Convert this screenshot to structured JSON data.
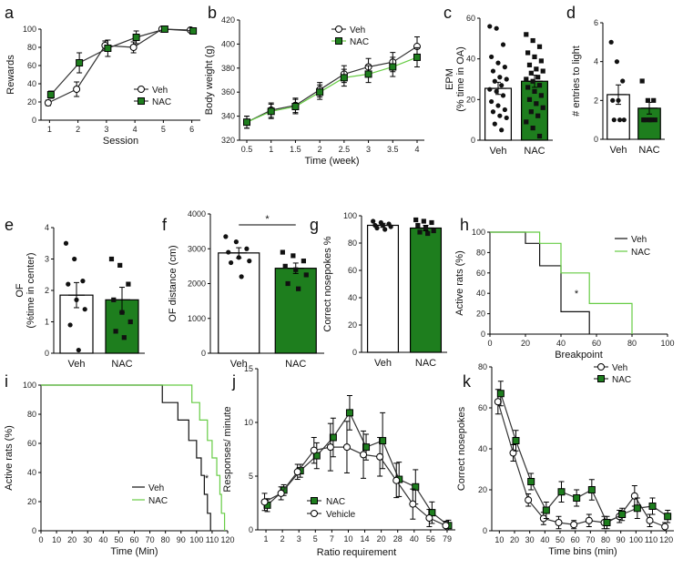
{
  "colors": {
    "veh": "#ffffff",
    "nac": "#1e7e1e",
    "nac_light": "#4caf50",
    "stroke": "#000000",
    "nac_line": "#66cc44"
  },
  "chart_data": [
    {
      "panel": "a",
      "type": "line",
      "x": [
        1,
        2,
        3,
        4,
        5,
        6
      ],
      "xlim": [
        0.7,
        6.3
      ],
      "ylim": [
        0,
        100
      ],
      "xticks": [
        "1",
        "2",
        "3",
        "4",
        "5",
        "6"
      ],
      "yticks": [
        "0",
        "20",
        "40",
        "60",
        "80",
        "100"
      ],
      "xlabel": "Session",
      "ylabel": "Rewards",
      "legend": [
        "Veh",
        "NAC"
      ],
      "series": [
        {
          "name": "Veh",
          "values": [
            19,
            34,
            82,
            80,
            100,
            99
          ],
          "err": [
            3,
            8,
            5,
            6,
            1,
            1
          ]
        },
        {
          "name": "NAC",
          "values": [
            28,
            63,
            79,
            91,
            100,
            98
          ],
          "err": [
            4,
            11,
            9,
            7,
            1,
            1
          ]
        }
      ]
    },
    {
      "panel": "b",
      "type": "line",
      "x": [
        0.5,
        1,
        1.5,
        2,
        2.5,
        3,
        3.5,
        4
      ],
      "xlim": [
        0.35,
        4.15
      ],
      "ylim": [
        320,
        420
      ],
      "xticks": [
        "0.5",
        "1",
        "1.5",
        "2",
        "2.5",
        "3",
        "3.5",
        "4"
      ],
      "yticks": [
        "320",
        "340",
        "360",
        "380",
        "400",
        "420"
      ],
      "xlabel": "Time (week)",
      "ylabel": "Body weight (g)",
      "legend": [
        "Veh",
        "NAC"
      ],
      "series": [
        {
          "name": "Veh",
          "values": [
            335,
            345,
            349,
            362,
            375,
            381,
            385,
            398
          ],
          "err": [
            5,
            6,
            6,
            6,
            7,
            7,
            8,
            8
          ]
        },
        {
          "name": "NAC",
          "values": [
            335,
            344,
            348,
            360,
            372,
            375,
            381,
            389
          ],
          "err": [
            5,
            6,
            6,
            6,
            7,
            7,
            8,
            8
          ]
        }
      ]
    },
    {
      "panel": "c",
      "type": "bar",
      "categories": [
        "Veh",
        "NAC"
      ],
      "values": [
        25.5,
        29
      ],
      "err": [
        3,
        3
      ],
      "ylim": [
        0,
        60
      ],
      "yticks": [
        "0",
        "20",
        "40",
        "60"
      ],
      "ylabel": "EPM",
      "ylabel2": "(% time in OA)",
      "points": [
        [
          56,
          55,
          47,
          41,
          38,
          36,
          34,
          31,
          30,
          29,
          27,
          25,
          24,
          22,
          19,
          17,
          15,
          14,
          12,
          11,
          8,
          5
        ],
        [
          52,
          49,
          46,
          43,
          41,
          39,
          37,
          35,
          34,
          33,
          31,
          30,
          29,
          27,
          26,
          24,
          22,
          20,
          18,
          16,
          14,
          12,
          9,
          6,
          2
        ]
      ]
    },
    {
      "panel": "d",
      "type": "bar",
      "categories": [
        "Veh",
        "NAC"
      ],
      "values": [
        2.3,
        1.6
      ],
      "err": [
        0.5,
        0.3
      ],
      "ylim": [
        0,
        6
      ],
      "yticks": [
        "0",
        "2",
        "4",
        "6"
      ],
      "ylabel": "# entries to light",
      "points": [
        [
          5,
          4,
          3,
          2,
          2,
          1,
          1,
          1
        ],
        [
          3,
          2,
          2,
          1,
          1,
          1,
          1,
          1
        ]
      ]
    },
    {
      "panel": "e",
      "type": "bar",
      "categories": [
        "Veh",
        "NAC"
      ],
      "values": [
        1.85,
        1.7
      ],
      "err": [
        0.4,
        0.4
      ],
      "ylim": [
        0,
        4
      ],
      "yticks": [
        "0",
        "1",
        "2",
        "3",
        "4"
      ],
      "ylabel": "OF",
      "ylabel2": "(%time in center)",
      "points": [
        [
          3.5,
          3.0,
          2.3,
          2.2,
          1.7,
          1.4,
          0.9,
          0.1
        ],
        [
          3.0,
          2.8,
          2.2,
          1.7,
          1.3,
          1.0,
          0.7,
          0.5
        ]
      ]
    },
    {
      "panel": "f",
      "type": "bar",
      "categories": [
        "Veh",
        "NAC"
      ],
      "values": [
        2880,
        2440
      ],
      "err": [
        150,
        150
      ],
      "ylim": [
        0,
        4000
      ],
      "yticks": [
        "0",
        "1000",
        "2000",
        "3000",
        "4000"
      ],
      "ylabel": "OF distance (cm)",
      "annotation": "*",
      "points": [
        [
          3350,
          3200,
          3000,
          2900,
          2750,
          2650,
          2600,
          2200
        ],
        [
          2900,
          2800,
          2650,
          2500,
          2400,
          2250,
          2000,
          1850
        ]
      ]
    },
    {
      "panel": "g",
      "type": "bar",
      "categories": [
        "Veh",
        "NAC"
      ],
      "values": [
        93,
        91
      ],
      "err": [
        1.5,
        2
      ],
      "ylim": [
        0,
        100
      ],
      "yticks": [
        "0",
        "20",
        "40",
        "60",
        "80",
        "100"
      ],
      "ylabel": "Correct nosepokes %",
      "points": [
        [
          96,
          95,
          94,
          93,
          93,
          92,
          91,
          90
        ],
        [
          97,
          96,
          95,
          93,
          91,
          89,
          88,
          87
        ]
      ]
    },
    {
      "panel": "h",
      "type": "survival",
      "xlim": [
        0,
        100
      ],
      "ylim": [
        0,
        100
      ],
      "xticks": [
        "0",
        "20",
        "40",
        "60",
        "80",
        "100"
      ],
      "yticks": [
        "0",
        "20",
        "40",
        "60",
        "80",
        "100"
      ],
      "xlabel": "Breakpoint",
      "ylabel": "Active rats (%)",
      "legend": [
        "Veh",
        "NAC"
      ],
      "annotation": "*",
      "series": [
        {
          "name": "Veh",
          "steps": [
            [
              0,
              100
            ],
            [
              20,
              100
            ],
            [
              20,
              89
            ],
            [
              28,
              89
            ],
            [
              28,
              67
            ],
            [
              40,
              67
            ],
            [
              40,
              22
            ],
            [
              56,
              22
            ],
            [
              56,
              0
            ]
          ]
        },
        {
          "name": "NAC",
          "steps": [
            [
              0,
              100
            ],
            [
              28,
              100
            ],
            [
              28,
              89
            ],
            [
              40,
              89
            ],
            [
              40,
              60
            ],
            [
              56,
              60
            ],
            [
              56,
              30
            ],
            [
              80,
              30
            ],
            [
              80,
              0
            ]
          ]
        }
      ]
    },
    {
      "panel": "i",
      "type": "survival",
      "xlim": [
        0,
        120
      ],
      "ylim": [
        0,
        100
      ],
      "xticks": [
        "0",
        "10",
        "20",
        "30",
        "40",
        "50",
        "60",
        "70",
        "80",
        "90",
        "100",
        "110",
        "120"
      ],
      "yticks": [
        "0",
        "20",
        "40",
        "60",
        "80",
        "100"
      ],
      "xlabel": "Time (Min)",
      "ylabel": "Active rats (%)",
      "legend": [
        "Veh",
        "NAC"
      ],
      "annotation": "*",
      "series": [
        {
          "name": "Veh",
          "steps": [
            [
              0,
              100
            ],
            [
              78,
              100
            ],
            [
              78,
              88
            ],
            [
              88,
              88
            ],
            [
              88,
              76
            ],
            [
              95,
              76
            ],
            [
              95,
              62
            ],
            [
              100,
              62
            ],
            [
              100,
              50
            ],
            [
              103,
              50
            ],
            [
              103,
              38
            ],
            [
              105,
              38
            ],
            [
              105,
              25
            ],
            [
              107,
              25
            ],
            [
              107,
              12
            ],
            [
              109,
              12
            ],
            [
              109,
              0
            ]
          ]
        },
        {
          "name": "NAC",
          "steps": [
            [
              0,
              100
            ],
            [
              97,
              100
            ],
            [
              97,
              88
            ],
            [
              102,
              88
            ],
            [
              102,
              76
            ],
            [
              107,
              76
            ],
            [
              107,
              62
            ],
            [
              110,
              62
            ],
            [
              110,
              50
            ],
            [
              113,
              50
            ],
            [
              113,
              38
            ],
            [
              115,
              38
            ],
            [
              115,
              25
            ],
            [
              116,
              25
            ],
            [
              116,
              12
            ],
            [
              118,
              12
            ],
            [
              118,
              0
            ]
          ]
        }
      ]
    },
    {
      "panel": "j",
      "type": "line",
      "categories": [
        "1",
        "2",
        "3",
        "5",
        "7",
        "10",
        "14",
        "20",
        "28",
        "40",
        "56",
        "79"
      ],
      "ylim": [
        0,
        15
      ],
      "yticks": [
        "0",
        "5",
        "10",
        "15"
      ],
      "xlabel": "Ratio requirement",
      "ylabel": "Responses/ minute",
      "legend": [
        "NAC",
        "Vehicle"
      ],
      "series": [
        {
          "name": "NAC",
          "values": [
            2.3,
            3.7,
            5.5,
            6.9,
            8.6,
            10.9,
            7.7,
            8.3,
            4.7,
            4.0,
            1.6,
            0.4
          ],
          "err": [
            0.6,
            0.5,
            0.6,
            1.2,
            1.8,
            1.6,
            1.2,
            2.6,
            1.6,
            1.6,
            1.0,
            0.5
          ]
        },
        {
          "name": "Vehicle",
          "values": [
            2.6,
            3.4,
            5.4,
            7.4,
            7.7,
            7.7,
            7.0,
            6.8,
            4.6,
            2.4,
            1.1,
            0.4
          ],
          "err": [
            0.8,
            0.6,
            0.7,
            1.2,
            2.2,
            2.4,
            2.2,
            1.8,
            1.6,
            1.4,
            0.8,
            0.4
          ]
        }
      ]
    },
    {
      "panel": "k",
      "type": "line",
      "x": [
        10,
        20,
        30,
        40,
        50,
        60,
        70,
        80,
        90,
        100,
        110,
        120
      ],
      "xlim": [
        5,
        125
      ],
      "ylim": [
        0,
        80
      ],
      "xticks": [
        "10",
        "20",
        "30",
        "40",
        "50",
        "60",
        "70",
        "80",
        "90",
        "100",
        "110",
        "120"
      ],
      "yticks": [
        "0",
        "20",
        "40",
        "60",
        "80"
      ],
      "xlabel": "Time bins (min)",
      "ylabel": "Correct nosepokes",
      "legend": [
        "Veh",
        "NAC"
      ],
      "series": [
        {
          "name": "Veh",
          "values": [
            63,
            38,
            15,
            6,
            4,
            3,
            5,
            4,
            7,
            17,
            5,
            2
          ],
          "err": [
            6,
            4,
            3,
            3,
            3,
            2,
            3,
            3,
            3,
            5,
            3,
            2
          ]
        },
        {
          "name": "NAC",
          "values": [
            67,
            44,
            24,
            10,
            19,
            16,
            20,
            4,
            8,
            11,
            12,
            7
          ],
          "err": [
            6,
            5,
            4,
            4,
            5,
            4,
            5,
            3,
            3,
            5,
            4,
            3
          ]
        }
      ]
    }
  ]
}
